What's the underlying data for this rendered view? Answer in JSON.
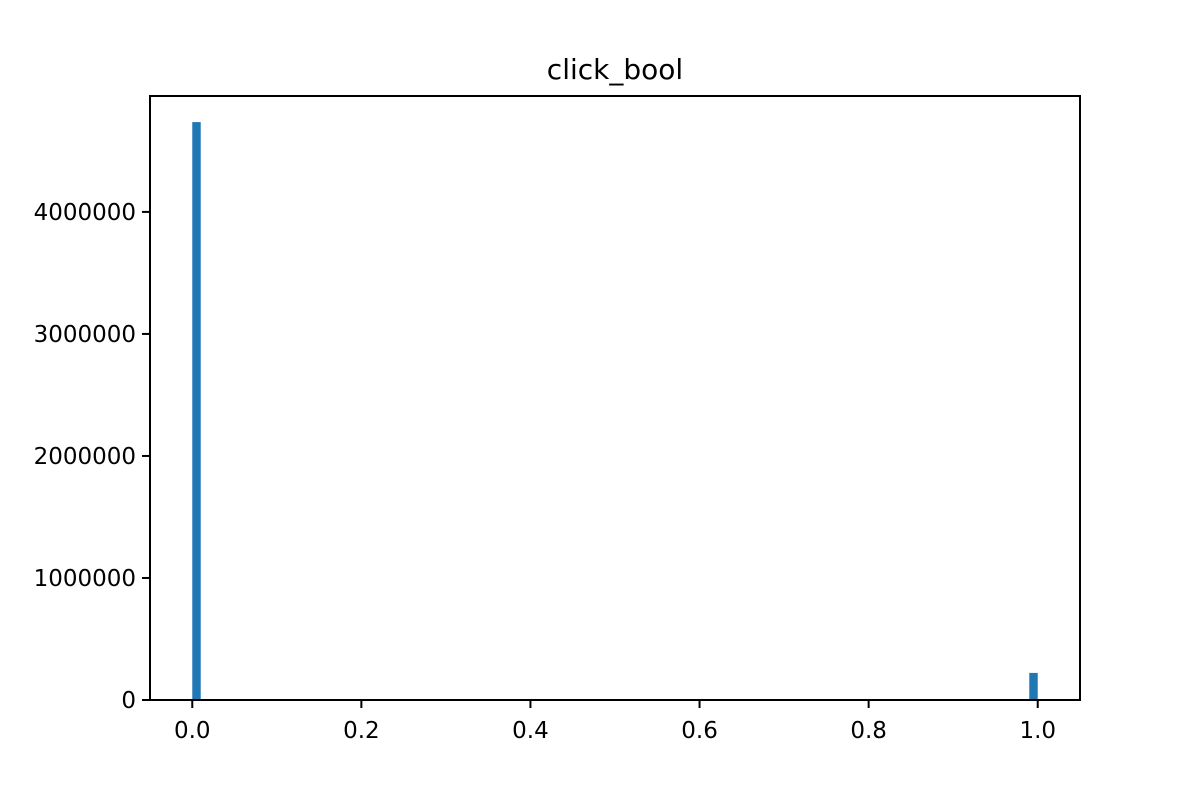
{
  "chart_data": {
    "type": "bar",
    "title": "click_bool",
    "xlabel": "",
    "ylabel": "",
    "bins": [
      {
        "x_start": 0.0,
        "x_end": 0.01,
        "value": 4736000
      },
      {
        "x_start": 0.99,
        "x_end": 1.0,
        "value": 222000
      }
    ],
    "xlim": [
      -0.05,
      1.05
    ],
    "ylim": [
      0,
      4950000
    ],
    "x_ticks": [
      0.0,
      0.2,
      0.4,
      0.6,
      0.8,
      1.0
    ],
    "x_tick_labels": [
      "0.0",
      "0.2",
      "0.4",
      "0.6",
      "0.8",
      "1.0"
    ],
    "y_ticks": [
      0,
      1000000,
      2000000,
      3000000,
      4000000
    ],
    "y_tick_labels": [
      "0",
      "1000000",
      "2000000",
      "3000000",
      "4000000"
    ],
    "grid": false,
    "bar_color": "#1f77b4"
  }
}
